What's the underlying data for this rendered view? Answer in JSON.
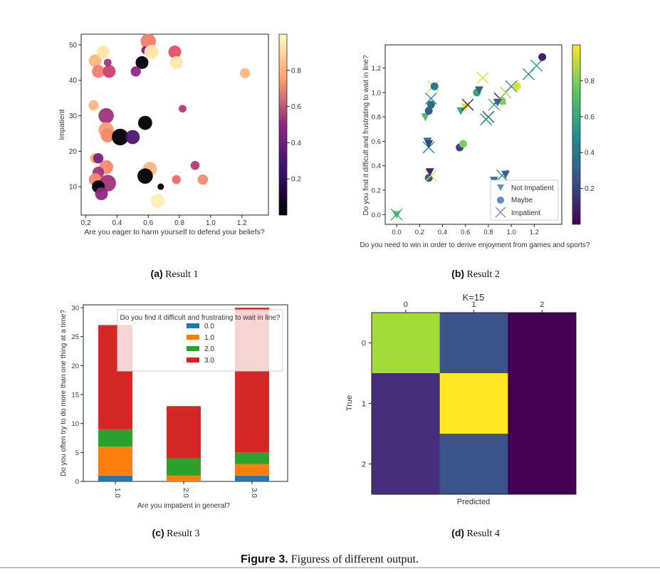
{
  "figure_caption": {
    "label": "Figure 3.",
    "text": " Figuress of different output."
  },
  "chart_data": [
    {
      "id": "a",
      "type": "scatter",
      "subcaption": {
        "label": "(a)",
        "text": " Result 1"
      },
      "xlabel": "Are you eager to harm yourself to defend your beliefs?",
      "ylabel": "Impatient",
      "xlim": [
        0.17,
        1.37
      ],
      "ylim": [
        2,
        53
      ],
      "xticks": [
        0.2,
        0.4,
        0.6,
        0.8,
        1.0,
        1.2
      ],
      "xtick_labels": [
        "0.2",
        "0.4",
        "0.6",
        "0.8",
        "1.0",
        "1.2"
      ],
      "yticks": [
        10,
        20,
        30,
        40,
        50
      ],
      "ytick_labels": [
        "10",
        "20",
        "30",
        "40",
        "50"
      ],
      "colormap": "magma",
      "colorbar_ticks": [
        0.2,
        0.4,
        0.6,
        0.8
      ],
      "colorbar_tick_labels": [
        "0.2",
        "0.4",
        "0.6",
        "0.8"
      ],
      "points": [
        {
          "x": 0.6,
          "y": 51,
          "c": 0.72,
          "s": 1.2
        },
        {
          "x": 0.26,
          "y": 45.5,
          "c": 0.85,
          "s": 1.0
        },
        {
          "x": 0.31,
          "y": 48,
          "c": 0.95,
          "s": 1.0
        },
        {
          "x": 0.28,
          "y": 42.5,
          "c": 0.72,
          "s": 1.0
        },
        {
          "x": 0.35,
          "y": 42.5,
          "c": 0.55,
          "s": 1.0
        },
        {
          "x": 0.34,
          "y": 45,
          "c": 0.45,
          "s": 0.6
        },
        {
          "x": 0.56,
          "y": 45,
          "c": 0.0,
          "s": 1.0
        },
        {
          "x": 0.58,
          "y": 48.5,
          "c": 0.35,
          "s": 0.6
        },
        {
          "x": 0.62,
          "y": 48,
          "c": 0.95,
          "s": 1.1
        },
        {
          "x": 0.52,
          "y": 42.5,
          "c": 0.4,
          "s": 0.8
        },
        {
          "x": 0.77,
          "y": 48,
          "c": 0.62,
          "s": 1.0
        },
        {
          "x": 0.78,
          "y": 45,
          "c": 0.95,
          "s": 1.0
        },
        {
          "x": 1.22,
          "y": 42,
          "c": 0.85,
          "s": 0.8
        },
        {
          "x": 0.25,
          "y": 33,
          "c": 0.85,
          "s": 0.8
        },
        {
          "x": 0.33,
          "y": 30,
          "c": 0.45,
          "s": 1.2
        },
        {
          "x": 0.33,
          "y": 26,
          "c": 0.8,
          "s": 1.2
        },
        {
          "x": 0.34,
          "y": 24.5,
          "c": 0.75,
          "s": 1.1
        },
        {
          "x": 0.42,
          "y": 24,
          "c": 0.0,
          "s": 1.3
        },
        {
          "x": 0.5,
          "y": 24,
          "c": 0.25,
          "s": 1.1
        },
        {
          "x": 0.58,
          "y": 28,
          "c": 0.0,
          "s": 1.1
        },
        {
          "x": 0.82,
          "y": 32,
          "c": 0.5,
          "s": 0.6
        },
        {
          "x": 0.26,
          "y": 18,
          "c": 0.8,
          "s": 0.8
        },
        {
          "x": 0.28,
          "y": 18,
          "c": 0.35,
          "s": 0.8
        },
        {
          "x": 0.33,
          "y": 15.5,
          "c": 0.75,
          "s": 1.1
        },
        {
          "x": 0.28,
          "y": 14,
          "c": 0.45,
          "s": 0.9
        },
        {
          "x": 0.26,
          "y": 12,
          "c": 0.75,
          "s": 1.0
        },
        {
          "x": 0.34,
          "y": 11,
          "c": 0.45,
          "s": 1.3
        },
        {
          "x": 0.28,
          "y": 10,
          "c": 0.0,
          "s": 1.0
        },
        {
          "x": 0.3,
          "y": 8,
          "c": 0.4,
          "s": 1.0
        },
        {
          "x": 0.61,
          "y": 15,
          "c": 0.85,
          "s": 1.1
        },
        {
          "x": 0.58,
          "y": 13,
          "c": 0.0,
          "s": 1.2
        },
        {
          "x": 0.68,
          "y": 10,
          "c": 0.0,
          "s": 0.5
        },
        {
          "x": 0.66,
          "y": 6,
          "c": 0.97,
          "s": 1.1
        },
        {
          "x": 0.78,
          "y": 12,
          "c": 0.68,
          "s": 0.7
        },
        {
          "x": 0.9,
          "y": 16,
          "c": 0.5,
          "s": 0.7
        },
        {
          "x": 0.95,
          "y": 12,
          "c": 0.75,
          "s": 0.8
        }
      ]
    },
    {
      "id": "b",
      "type": "scatter",
      "subcaption": {
        "label": "(b)",
        "text": " Result 2"
      },
      "xlabel": "Do you need to win in order to derive enjoyment from games and sports?",
      "ylabel": "Do you find it difficult and frustrating to wait in line?",
      "xlim": [
        -0.1,
        1.44
      ],
      "ylim": [
        -0.08,
        1.39
      ],
      "xticks": [
        0.0,
        0.2,
        0.4,
        0.6,
        0.8,
        1.0,
        1.2
      ],
      "xtick_labels": [
        "0.0",
        "0.2",
        "0.4",
        "0.6",
        "0.8",
        "1.0",
        "1.2"
      ],
      "yticks": [
        0.0,
        0.2,
        0.4,
        0.6,
        0.8,
        1.0,
        1.2
      ],
      "ytick_labels": [
        "0.0",
        "0.2",
        "0.4",
        "0.6",
        "0.8",
        "1.0",
        "1.2"
      ],
      "colormap": "viridis",
      "colorbar_ticks": [
        0.2,
        0.4,
        0.6,
        0.8
      ],
      "colorbar_tick_labels": [
        "0.2",
        "0.4",
        "0.6",
        "0.8"
      ],
      "legend": [
        {
          "label": "Not Impatient",
          "marker": "triangle"
        },
        {
          "label": "Maybe",
          "marker": "circle"
        },
        {
          "label": "Impatient",
          "marker": "x"
        }
      ],
      "points": [
        {
          "x": 0.0,
          "y": 0.0,
          "c": 0.75,
          "m": "triangle"
        },
        {
          "x": 0.0,
          "y": 0.0,
          "c": 0.6,
          "m": "x"
        },
        {
          "x": 0.25,
          "y": 0.8,
          "c": 0.7,
          "m": "triangle"
        },
        {
          "x": 0.27,
          "y": 0.6,
          "c": 0.4,
          "m": "triangle"
        },
        {
          "x": 0.28,
          "y": 0.55,
          "c": 0.5,
          "m": "x"
        },
        {
          "x": 0.28,
          "y": 0.58,
          "c": 0.2,
          "m": "triangle"
        },
        {
          "x": 0.28,
          "y": 0.3,
          "c": 0.3,
          "m": "circle"
        },
        {
          "x": 0.3,
          "y": 0.32,
          "c": 0.95,
          "m": "x"
        },
        {
          "x": 0.29,
          "y": 0.35,
          "c": 0.1,
          "m": "triangle"
        },
        {
          "x": 0.28,
          "y": 0.85,
          "c": 0.3,
          "m": "circle"
        },
        {
          "x": 0.3,
          "y": 0.9,
          "c": 0.35,
          "m": "circle"
        },
        {
          "x": 0.3,
          "y": 0.95,
          "c": 0.5,
          "m": "x"
        },
        {
          "x": 0.32,
          "y": 1.05,
          "c": 0.95,
          "m": "x"
        },
        {
          "x": 0.33,
          "y": 1.05,
          "c": 0.4,
          "m": "circle"
        },
        {
          "x": 0.55,
          "y": 0.55,
          "c": 0.2,
          "m": "circle"
        },
        {
          "x": 0.58,
          "y": 0.58,
          "c": 0.8,
          "m": "circle"
        },
        {
          "x": 0.56,
          "y": 0.85,
          "c": 0.6,
          "m": "triangle"
        },
        {
          "x": 0.6,
          "y": 0.88,
          "c": 0.95,
          "m": "triangle"
        },
        {
          "x": 0.62,
          "y": 0.9,
          "c": 0.1,
          "m": "x"
        },
        {
          "x": 0.7,
          "y": 1.0,
          "c": 0.6,
          "m": "circle"
        },
        {
          "x": 0.72,
          "y": 1.02,
          "c": 0.3,
          "m": "triangle"
        },
        {
          "x": 0.75,
          "y": 1.12,
          "c": 0.95,
          "m": "x"
        },
        {
          "x": 0.8,
          "y": 0.8,
          "c": 0.2,
          "m": "x"
        },
        {
          "x": 0.85,
          "y": 0.9,
          "c": 0.6,
          "m": "x"
        },
        {
          "x": 0.9,
          "y": 0.95,
          "c": 0.1,
          "m": "x"
        },
        {
          "x": 0.95,
          "y": 1.0,
          "c": 0.9,
          "m": "x"
        },
        {
          "x": 1.0,
          "y": 1.05,
          "c": 0.5,
          "m": "x"
        },
        {
          "x": 1.05,
          "y": 1.05,
          "c": 0.95,
          "m": "circle"
        },
        {
          "x": 0.78,
          "y": 0.78,
          "c": 0.5,
          "m": "x"
        },
        {
          "x": 0.92,
          "y": 0.93,
          "c": 0.8,
          "m": "circle"
        },
        {
          "x": 0.88,
          "y": 0.92,
          "c": 0.3,
          "m": "triangle"
        },
        {
          "x": 1.15,
          "y": 1.15,
          "c": 0.5,
          "m": "x"
        },
        {
          "x": 1.22,
          "y": 1.22,
          "c": 0.55,
          "m": "x"
        },
        {
          "x": 1.27,
          "y": 1.29,
          "c": 0.1,
          "m": "circle"
        },
        {
          "x": 0.85,
          "y": 0.28,
          "c": 0.4,
          "m": "triangle"
        },
        {
          "x": 0.92,
          "y": 0.32,
          "c": 0.5,
          "m": "x"
        },
        {
          "x": 0.95,
          "y": 0.33,
          "c": 0.3,
          "m": "triangle"
        }
      ]
    },
    {
      "id": "c",
      "type": "bar",
      "stacked": true,
      "subcaption": {
        "label": "(c)",
        "text": " Result 3"
      },
      "xlabel": "Are you impatient in general?",
      "ylabel": "Do you often try to do more than one thing at a time?",
      "categories": [
        "1.0",
        "2.0",
        "3.0"
      ],
      "ylim": [
        0,
        30.5
      ],
      "yticks": [
        0,
        5,
        10,
        15,
        20,
        25,
        30
      ],
      "ytick_labels": [
        "0",
        "5",
        "10",
        "15",
        "20",
        "25",
        "30"
      ],
      "legend_title": "Do you find it difficult and frustrating to wait in line?",
      "series": [
        {
          "name": "0.0",
          "color": "#1f77b4",
          "values": [
            1,
            0,
            1
          ]
        },
        {
          "name": "1.0",
          "color": "#ff7f0e",
          "values": [
            5,
            1,
            2
          ]
        },
        {
          "name": "2.0",
          "color": "#2ca02c",
          "values": [
            3,
            3,
            2
          ]
        },
        {
          "name": "3.0",
          "color": "#d62728",
          "values": [
            18,
            9,
            25
          ]
        }
      ]
    },
    {
      "id": "d",
      "type": "heatmap",
      "subcaption": {
        "label": "(d)",
        "text": " Result 4"
      },
      "title": "K=15",
      "xlabel": "Predicted",
      "ylabel": "True",
      "xtick_labels": [
        "0",
        "1",
        "2"
      ],
      "ytick_labels": [
        "0",
        "1",
        "2"
      ],
      "colormap": "viridis",
      "matrix_colors": [
        [
          "#a5db36",
          "#3b528b",
          "#440154"
        ],
        [
          "#472d7b",
          "#fde725",
          "#440154"
        ],
        [
          "#472d7b",
          "#3b528b",
          "#440154"
        ]
      ]
    }
  ]
}
